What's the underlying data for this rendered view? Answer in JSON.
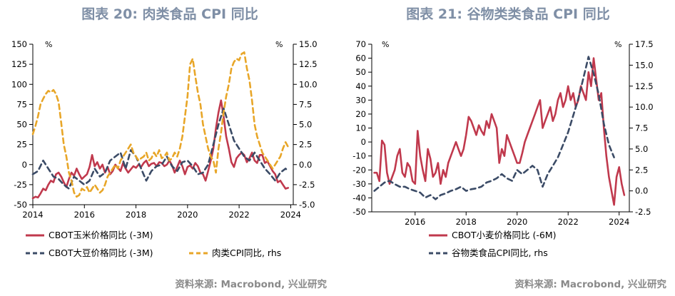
{
  "chart_data": [
    {
      "type": "line",
      "title": "图表 20: 肉类食品 CPI 同比",
      "y_unit_left": "%",
      "y_unit_right": "%",
      "ylim_left": [
        -50,
        150
      ],
      "yticks_left": [
        "150",
        "125",
        "100",
        "75",
        "50",
        "25",
        "0",
        "-25",
        "-50"
      ],
      "ylim_right": [
        -5.0,
        15.0
      ],
      "yticks_right": [
        "15.0",
        "12.5",
        "10.0",
        "7.5",
        "5.0",
        "2.5",
        "0.0",
        "-2.5",
        "-5.0"
      ],
      "xlim": [
        2014,
        2024.1
      ],
      "xticks": [
        "2014",
        "2016",
        "2018",
        "2020",
        "2022",
        "2024"
      ],
      "series": [
        {
          "name": "CBOT玉米价格同比 (-3M)",
          "axis": "left",
          "color": "#c0394d",
          "dash": "solid",
          "x": [
            2014.0,
            2014.1,
            2014.2,
            2014.3,
            2014.4,
            2014.5,
            2014.6,
            2014.7,
            2014.8,
            2014.9,
            2015.0,
            2015.1,
            2015.2,
            2015.3,
            2015.4,
            2015.5,
            2015.6,
            2015.7,
            2015.8,
            2015.9,
            2016.0,
            2016.1,
            2016.2,
            2016.3,
            2016.4,
            2016.5,
            2016.6,
            2016.7,
            2016.8,
            2016.9,
            2017.0,
            2017.1,
            2017.2,
            2017.3,
            2017.4,
            2017.5,
            2017.6,
            2017.7,
            2017.8,
            2017.9,
            2018.0,
            2018.1,
            2018.2,
            2018.3,
            2018.4,
            2018.5,
            2018.6,
            2018.7,
            2018.8,
            2018.9,
            2019.0,
            2019.1,
            2019.2,
            2019.3,
            2019.4,
            2019.5,
            2019.6,
            2019.7,
            2019.8,
            2019.9,
            2020.0,
            2020.1,
            2020.2,
            2020.3,
            2020.4,
            2020.5,
            2020.6,
            2020.7,
            2020.8,
            2020.9,
            2021.0,
            2021.1,
            2021.2,
            2021.3,
            2021.4,
            2021.5,
            2021.6,
            2021.7,
            2021.8,
            2021.9,
            2022.0,
            2022.1,
            2022.2,
            2022.3,
            2022.4,
            2022.5,
            2022.6,
            2022.7,
            2022.8,
            2022.9,
            2023.0,
            2023.1,
            2023.2,
            2023.3,
            2023.4,
            2023.5,
            2023.6,
            2023.7,
            2023.8,
            2023.9
          ],
          "values": [
            -42,
            -40,
            -41,
            -36,
            -30,
            -32,
            -25,
            -20,
            -22,
            -12,
            -10,
            -15,
            -22,
            -28,
            -18,
            -10,
            -14,
            -5,
            -12,
            -18,
            -15,
            -12,
            -3,
            12,
            -2,
            3,
            -5,
            0,
            -10,
            -3,
            -12,
            -8,
            0,
            -4,
            -8,
            2,
            -5,
            -10,
            -6,
            -2,
            -4,
            0,
            -3,
            2,
            5,
            -2,
            1,
            2,
            -2,
            3,
            2,
            -2,
            0,
            5,
            -1,
            -10,
            -3,
            5,
            -2,
            -12,
            -3,
            -1,
            -5,
            2,
            -2,
            -10,
            -12,
            -20,
            -8,
            5,
            20,
            45,
            65,
            80,
            60,
            35,
            20,
            3,
            -3,
            8,
            12,
            15,
            12,
            3,
            8,
            15,
            5,
            2,
            12,
            12,
            2,
            4,
            -2,
            -8,
            -12,
            -22,
            -20,
            -25,
            -30,
            -29
          ]
        },
        {
          "name": "CBOT大豆价格同比 (-3M)",
          "axis": "left",
          "color": "#3b4b66",
          "dash": "dashed",
          "x": [
            2014.0,
            2014.2,
            2014.4,
            2014.6,
            2014.8,
            2015.0,
            2015.2,
            2015.4,
            2015.6,
            2015.8,
            2016.0,
            2016.2,
            2016.4,
            2016.6,
            2016.8,
            2017.0,
            2017.2,
            2017.4,
            2017.6,
            2017.8,
            2018.0,
            2018.2,
            2018.4,
            2018.6,
            2018.8,
            2019.0,
            2019.2,
            2019.4,
            2019.6,
            2019.8,
            2020.0,
            2020.2,
            2020.4,
            2020.6,
            2020.8,
            2021.0,
            2021.2,
            2021.4,
            2021.6,
            2021.8,
            2022.0,
            2022.2,
            2022.4,
            2022.6,
            2022.8,
            2023.0,
            2023.2,
            2023.4,
            2023.6,
            2023.8,
            2023.9
          ],
          "values": [
            -12,
            -8,
            5,
            -5,
            -15,
            -18,
            -25,
            -30,
            -15,
            -20,
            -25,
            -20,
            -5,
            -15,
            -10,
            5,
            10,
            15,
            -5,
            18,
            10,
            -5,
            -20,
            -8,
            -2,
            0,
            10,
            -2,
            -8,
            3,
            5,
            -2,
            -12,
            -10,
            0,
            25,
            50,
            70,
            50,
            30,
            20,
            10,
            5,
            15,
            5,
            -5,
            -12,
            -20,
            -10,
            -5,
            -8
          ]
        },
        {
          "name": "肉类CPI同比, rhs",
          "axis": "right",
          "color": "#e8a628",
          "dash": "dashed",
          "x": [
            2014.0,
            2014.1,
            2014.2,
            2014.3,
            2014.4,
            2014.5,
            2014.6,
            2014.7,
            2014.8,
            2014.9,
            2015.0,
            2015.1,
            2015.2,
            2015.3,
            2015.4,
            2015.5,
            2015.6,
            2015.7,
            2015.8,
            2015.9,
            2016.0,
            2016.1,
            2016.2,
            2016.3,
            2016.4,
            2016.5,
            2016.6,
            2016.7,
            2016.8,
            2016.9,
            2017.0,
            2017.1,
            2017.2,
            2017.3,
            2017.4,
            2017.5,
            2017.6,
            2017.7,
            2017.8,
            2017.9,
            2018.0,
            2018.1,
            2018.2,
            2018.3,
            2018.4,
            2018.5,
            2018.6,
            2018.7,
            2018.8,
            2018.9,
            2019.0,
            2019.1,
            2019.2,
            2019.3,
            2019.4,
            2019.5,
            2019.6,
            2019.7,
            2019.8,
            2019.9,
            2020.0,
            2020.1,
            2020.2,
            2020.3,
            2020.4,
            2020.5,
            2020.6,
            2020.7,
            2020.8,
            2020.9,
            2021.0,
            2021.1,
            2021.2,
            2021.3,
            2021.4,
            2021.5,
            2021.6,
            2021.7,
            2021.8,
            2021.9,
            2022.0,
            2022.1,
            2022.2,
            2022.3,
            2022.4,
            2022.5,
            2022.6,
            2022.7,
            2022.8,
            2022.9,
            2023.0,
            2023.1,
            2023.2,
            2023.3,
            2023.4,
            2023.5,
            2023.6,
            2023.7,
            2023.8,
            2023.9
          ],
          "values": [
            3.8,
            4.8,
            6.0,
            7.5,
            8.2,
            8.8,
            9.2,
            9.0,
            9.3,
            8.8,
            7.8,
            5.2,
            2.5,
            1.0,
            -1.0,
            -2.0,
            -3.5,
            -4.0,
            -3.8,
            -3.0,
            -3.2,
            -2.8,
            -3.5,
            -3.0,
            -2.5,
            -3.0,
            -3.5,
            -3.2,
            -2.5,
            -1.5,
            -1.0,
            -0.5,
            0.0,
            -0.5,
            0.5,
            1.0,
            1.5,
            2.0,
            2.5,
            1.5,
            1.0,
            0.5,
            0.8,
            1.0,
            1.5,
            0.5,
            0.8,
            1.5,
            1.0,
            1.8,
            0.8,
            1.0,
            1.5,
            0.5,
            0.8,
            1.5,
            1.0,
            2.0,
            3.5,
            6.0,
            8.5,
            12.5,
            13.2,
            11.0,
            9.0,
            7.5,
            5.0,
            3.5,
            2.0,
            1.0,
            0.5,
            -1.0,
            2.0,
            4.0,
            6.5,
            8.5,
            10.0,
            12.0,
            12.8,
            13.2,
            13.0,
            13.8,
            14.0,
            12.0,
            10.5,
            8.0,
            5.0,
            3.5,
            2.5,
            1.5,
            1.0,
            0.5,
            0.0,
            -0.5,
            0.0,
            0.5,
            1.0,
            2.0,
            2.8,
            2.2
          ]
        }
      ],
      "legend": [
        "CBOT玉米价格同比 (-3M)",
        "CBOT大豆价格同比 (-3M)",
        "肉类CPI同比, rhs"
      ],
      "source": "资料来源: Macrobond, 兴业研究"
    },
    {
      "type": "line",
      "title": "图表 21: 谷物类类食品 CPI 同比",
      "y_unit_left": "%",
      "y_unit_right": "%",
      "ylim_left": [
        -50,
        70
      ],
      "yticks_left": [
        "70",
        "60",
        "50",
        "40",
        "30",
        "20",
        "10",
        "0",
        "-10",
        "-20",
        "-30",
        "-40",
        "-50"
      ],
      "ylim_right": [
        -2.5,
        17.5
      ],
      "yticks_right": [
        "17.5",
        "15.0",
        "12.5",
        "10.0",
        "7.5",
        "5.0",
        "2.5",
        "0.0",
        "-2.5"
      ],
      "xlim": [
        2014.3,
        2024.4
      ],
      "xticks": [
        "2016",
        "2018",
        "2020",
        "2022",
        "2024"
      ],
      "series": [
        {
          "name": "CBOT小麦价格同比 (-6M)",
          "axis": "left",
          "color": "#c0394d",
          "dash": "solid",
          "x": [
            2014.4,
            2014.5,
            2014.6,
            2014.7,
            2014.8,
            2014.9,
            2015.0,
            2015.1,
            2015.2,
            2015.3,
            2015.4,
            2015.5,
            2015.6,
            2015.7,
            2015.8,
            2015.9,
            2016.0,
            2016.1,
            2016.2,
            2016.3,
            2016.4,
            2016.5,
            2016.6,
            2016.7,
            2016.8,
            2016.9,
            2017.0,
            2017.1,
            2017.2,
            2017.3,
            2017.4,
            2017.5,
            2017.6,
            2017.7,
            2017.8,
            2017.9,
            2018.0,
            2018.1,
            2018.2,
            2018.3,
            2018.4,
            2018.5,
            2018.6,
            2018.7,
            2018.8,
            2018.9,
            2019.0,
            2019.1,
            2019.2,
            2019.3,
            2019.4,
            2019.5,
            2019.6,
            2019.7,
            2019.8,
            2019.9,
            2020.0,
            2020.1,
            2020.2,
            2020.3,
            2020.4,
            2020.5,
            2020.6,
            2020.7,
            2020.8,
            2020.9,
            2021.0,
            2021.1,
            2021.2,
            2021.3,
            2021.4,
            2021.5,
            2021.6,
            2021.7,
            2021.8,
            2021.9,
            2022.0,
            2022.1,
            2022.2,
            2022.3,
            2022.4,
            2022.5,
            2022.6,
            2022.7,
            2022.8,
            2022.9,
            2023.0,
            2023.1,
            2023.2,
            2023.3,
            2023.4,
            2023.5,
            2023.6,
            2023.7,
            2023.8,
            2023.9,
            2024.0,
            2024.1,
            2024.2
          ],
          "values": [
            -22,
            -22,
            -28,
            1,
            -2,
            -22,
            -30,
            -25,
            -20,
            -10,
            -5,
            -22,
            -25,
            -15,
            -18,
            -28,
            -30,
            8,
            -10,
            -20,
            -28,
            -5,
            -12,
            -25,
            -22,
            -15,
            -30,
            -20,
            -25,
            -15,
            -10,
            -5,
            0,
            -5,
            -10,
            -5,
            5,
            18,
            15,
            10,
            5,
            12,
            8,
            5,
            15,
            10,
            20,
            15,
            10,
            -15,
            -5,
            -10,
            5,
            0,
            -5,
            -10,
            -15,
            -15,
            -8,
            0,
            5,
            10,
            15,
            20,
            25,
            30,
            10,
            15,
            20,
            25,
            15,
            20,
            30,
            35,
            25,
            30,
            40,
            30,
            35,
            25,
            30,
            40,
            35,
            30,
            50,
            40,
            60,
            45,
            30,
            35,
            10,
            -10,
            -25,
            -35,
            -45,
            -25,
            -18,
            -30,
            -38
          ]
        },
        {
          "name": "谷物类食品CPI同比, rhs",
          "axis": "right",
          "color": "#3b4b66",
          "dash": "dashed",
          "x": [
            2014.4,
            2014.6,
            2014.8,
            2015.0,
            2015.2,
            2015.4,
            2015.6,
            2015.8,
            2016.0,
            2016.2,
            2016.4,
            2016.6,
            2016.8,
            2017.0,
            2017.2,
            2017.4,
            2017.6,
            2017.8,
            2018.0,
            2018.2,
            2018.4,
            2018.6,
            2018.8,
            2019.0,
            2019.2,
            2019.4,
            2019.6,
            2019.8,
            2020.0,
            2020.2,
            2020.4,
            2020.6,
            2020.8,
            2021.0,
            2021.2,
            2021.4,
            2021.6,
            2021.8,
            2022.0,
            2022.2,
            2022.4,
            2022.6,
            2022.8,
            2023.0,
            2023.2,
            2023.4,
            2023.6,
            2023.8
          ],
          "values": [
            0.0,
            0.5,
            1.0,
            1.2,
            0.8,
            0.5,
            0.5,
            0.2,
            0.0,
            -0.2,
            -0.8,
            -0.5,
            -1.0,
            -0.5,
            -0.3,
            0.0,
            0.2,
            0.5,
            0.0,
            0.2,
            0.3,
            0.5,
            1.0,
            1.2,
            1.5,
            2.0,
            1.5,
            1.2,
            2.5,
            2.0,
            2.5,
            3.0,
            2.5,
            0.5,
            2.0,
            3.0,
            4.0,
            5.5,
            7.0,
            9.0,
            11.0,
            13.5,
            16.0,
            14.0,
            11.5,
            8.0,
            5.5,
            4.0
          ]
        }
      ],
      "legend": [
        "CBOT小麦价格同比 (-6M)",
        "谷物类食品CPI同比, rhs"
      ],
      "source": "资料来源: Macrobond, 兴业研究"
    }
  ]
}
